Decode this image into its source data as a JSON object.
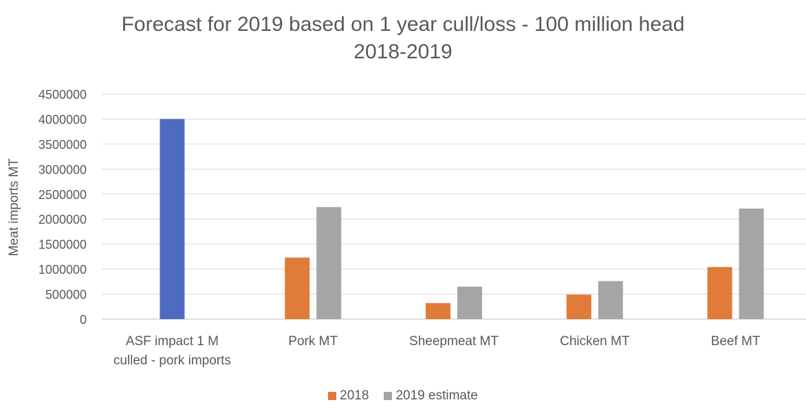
{
  "chart_data": {
    "type": "bar",
    "title": "Forecast for 2019 based on 1 year cull/loss - 100 million head",
    "subtitle": "2018-2019",
    "ylabel": "Meat imports MT",
    "xlabel": "",
    "ylim": [
      0,
      4500000
    ],
    "yticks": [
      "0",
      "500000",
      "1000000",
      "1500000",
      "2000000",
      "2500000",
      "3000000",
      "3500000",
      "4000000",
      "4500000"
    ],
    "grid": true,
    "legend_position": "bottom",
    "categories": [
      [
        "ASF impact 1 M",
        "culled - pork imports"
      ],
      [
        "Pork MT"
      ],
      [
        "Sheepmeat MT"
      ],
      [
        "Chicken MT"
      ],
      [
        "Beef MT"
      ]
    ],
    "asf_bar": {
      "value": 4000000,
      "color": "#4f6bbf"
    },
    "series": [
      {
        "name": "2018",
        "color": "#e07b39",
        "values": [
          null,
          1230000,
          320000,
          490000,
          1040000
        ]
      },
      {
        "name": "2019 estimate",
        "color": "#a5a5a5",
        "values": [
          null,
          2240000,
          650000,
          760000,
          2210000
        ]
      }
    ]
  }
}
